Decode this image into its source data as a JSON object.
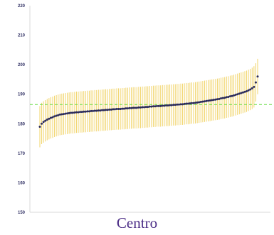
{
  "chart_data": {
    "type": "scatter",
    "title": "",
    "xlabel": "",
    "ylabel": "",
    "caption": "Centro",
    "ylim": [
      150,
      220
    ],
    "y_ticks": [
      "150",
      "160",
      "170",
      "180",
      "190",
      "200",
      "210",
      "220"
    ],
    "x_ticks_shown": false,
    "grid": false,
    "legend": "none",
    "reference_line": {
      "value": 186.5,
      "style": "dashed",
      "color": "#66dd44"
    },
    "colors": {
      "point": "#2b2b5a",
      "error_bar": "#f2d46a",
      "axis": "#d9d9d9",
      "tick_label": "#333366",
      "caption": "#4b2d86"
    },
    "n_points": 120,
    "series": [
      {
        "values": [
          179,
          180,
          180.6,
          181,
          181.4,
          181.7,
          182,
          182.2,
          182.5,
          182.7,
          182.9,
          183.1,
          183.2,
          183.3,
          183.4,
          183.5,
          183.6,
          183.7,
          183.7,
          183.8,
          183.9,
          183.9,
          184,
          184,
          184.1,
          184.1,
          184.2,
          184.2,
          184.3,
          184.3,
          184.4,
          184.4,
          184.5,
          184.5,
          184.6,
          184.6,
          184.7,
          184.7,
          184.8,
          184.8,
          184.9,
          184.9,
          185,
          185,
          185,
          185.1,
          185.1,
          185.2,
          185.2,
          185.3,
          185.3,
          185.4,
          185.4,
          185.4,
          185.5,
          185.5,
          185.6,
          185.6,
          185.7,
          185.7,
          185.8,
          185.8,
          185.9,
          185.9,
          186,
          186,
          186,
          186.1,
          186.1,
          186.2,
          186.2,
          186.3,
          186.3,
          186.4,
          186.4,
          186.5,
          186.5,
          186.6,
          186.6,
          186.7,
          186.8,
          186.8,
          186.9,
          187,
          187,
          187.1,
          187.2,
          187.3,
          187.4,
          187.5,
          187.6,
          187.7,
          187.8,
          187.9,
          188,
          188.1,
          188.2,
          188.3,
          188.4,
          188.6,
          188.7,
          188.8,
          189,
          189.1,
          189.3,
          189.4,
          189.6,
          189.8,
          190,
          190.2,
          190.4,
          190.6,
          190.8,
          191,
          191.3,
          191.6,
          192,
          192.5,
          194,
          196
        ],
        "lower": [
          172,
          173.1,
          173.6,
          174,
          174.4,
          174.7,
          175,
          175.2,
          175.5,
          175.7,
          175.9,
          176.1,
          176.2,
          176.3,
          176.4,
          176.5,
          176.6,
          176.7,
          176.7,
          176.8,
          176.9,
          176.9,
          177,
          177,
          177.1,
          177.1,
          177.2,
          177.2,
          177.3,
          177.3,
          177.4,
          177.4,
          177.5,
          177.5,
          177.6,
          177.6,
          177.7,
          177.7,
          177.8,
          177.8,
          177.9,
          177.9,
          178,
          178,
          178,
          178.1,
          178.1,
          178.2,
          178.2,
          178.3,
          178.3,
          178.4,
          178.4,
          178.4,
          178.5,
          178.5,
          178.6,
          178.6,
          178.7,
          178.7,
          178.8,
          178.8,
          178.9,
          178.9,
          179,
          179,
          179,
          179.1,
          179.1,
          179.2,
          179.2,
          179.3,
          179.3,
          179.4,
          179.4,
          179.5,
          179.5,
          179.6,
          179.6,
          179.7,
          179.8,
          179.8,
          179.9,
          180,
          180,
          180.1,
          180.2,
          180.3,
          180.4,
          180.5,
          180.6,
          180.7,
          180.8,
          180.9,
          181,
          181.1,
          181.2,
          181.3,
          181.4,
          181.6,
          181.7,
          181.8,
          182,
          182.1,
          182.3,
          182.4,
          182.6,
          182.8,
          183,
          183.2,
          183.4,
          183.6,
          183.8,
          184,
          184.3,
          184.6,
          185,
          185.5,
          187.5,
          190
        ],
        "upper": [
          186,
          187.1,
          187.6,
          188,
          188.4,
          188.7,
          189,
          189.2,
          189.5,
          189.7,
          189.9,
          190.1,
          190.2,
          190.3,
          190.4,
          190.5,
          190.6,
          190.7,
          190.7,
          190.8,
          190.9,
          190.9,
          191,
          191,
          191.1,
          191.1,
          191.2,
          191.2,
          191.3,
          191.3,
          191.4,
          191.4,
          191.5,
          191.5,
          191.6,
          191.6,
          191.7,
          191.7,
          191.8,
          191.8,
          191.9,
          191.9,
          192,
          192,
          192,
          192.1,
          192.1,
          192.2,
          192.2,
          192.3,
          192.3,
          192.4,
          192.4,
          192.4,
          192.5,
          192.5,
          192.6,
          192.6,
          192.7,
          192.7,
          192.8,
          192.8,
          192.9,
          192.9,
          193,
          193,
          193,
          193.1,
          193.1,
          193.2,
          193.2,
          193.3,
          193.3,
          193.4,
          193.4,
          193.5,
          193.5,
          193.6,
          193.6,
          193.7,
          193.8,
          193.8,
          193.9,
          194,
          194,
          194.1,
          194.2,
          194.3,
          194.4,
          194.5,
          194.6,
          194.7,
          194.8,
          194.9,
          195,
          195.1,
          195.2,
          195.3,
          195.4,
          195.6,
          195.7,
          195.8,
          196,
          196.1,
          196.3,
          196.4,
          196.6,
          196.8,
          197,
          197.2,
          197.4,
          197.6,
          197.8,
          198,
          198.3,
          198.6,
          199,
          199.5,
          200.5,
          202
        ]
      }
    ]
  }
}
